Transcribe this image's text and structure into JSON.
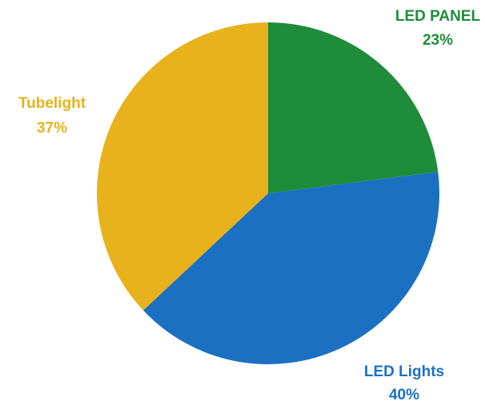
{
  "chart_data": {
    "type": "pie",
    "slices": [
      {
        "label": "LED PANEL",
        "value": 23,
        "value_label": "23%",
        "color": "#1f8c3a"
      },
      {
        "label": "LED Lights",
        "value": 40,
        "value_label": "40%",
        "color": "#1b70c2"
      },
      {
        "label": "Tubelight",
        "value": 37,
        "value_label": "37%",
        "color": "#e8b21c"
      }
    ],
    "title": "",
    "legend": "none"
  }
}
